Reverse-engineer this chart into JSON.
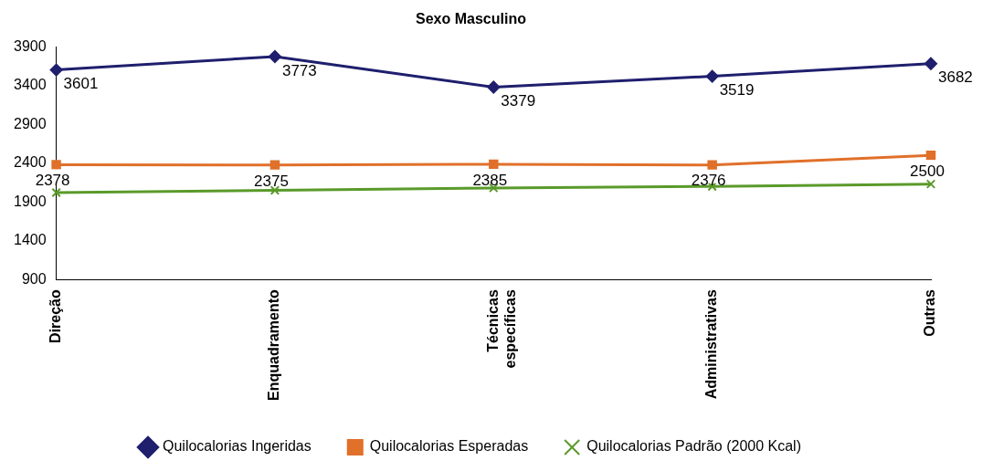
{
  "chart_data": {
    "type": "line",
    "title": "Sexo Masculino",
    "categories": [
      "Direção",
      "Enquadramento",
      "Técnicas específicas",
      "Administrativas",
      "Outras"
    ],
    "series": [
      {
        "name": "Quilocalorias Ingeridas",
        "color": "#1f1f6e",
        "marker": "diamond",
        "values": [
          3601,
          3773,
          3379,
          3519,
          3682
        ],
        "value_labels": [
          "3601",
          "3773",
          "3379",
          "3519",
          "3682"
        ]
      },
      {
        "name": "Quilocalorias Esperadas",
        "color": "#e0702a",
        "marker": "square",
        "values": [
          2378,
          2375,
          2385,
          2376,
          2500
        ],
        "value_labels": [
          "2378",
          "2375",
          "2385",
          "2376",
          "2500"
        ]
      },
      {
        "name": "Quilocalorias Padrão (2000 Kcal)",
        "color": "#5a9a2a",
        "marker": "cross",
        "values": [
          2020,
          2050,
          2080,
          2100,
          2130
        ]
      }
    ],
    "ylim": [
      900,
      3900
    ],
    "yticks": [
      900,
      1400,
      1900,
      2400,
      2900,
      3400,
      3900
    ],
    "grid": false,
    "legend": "bottom"
  }
}
